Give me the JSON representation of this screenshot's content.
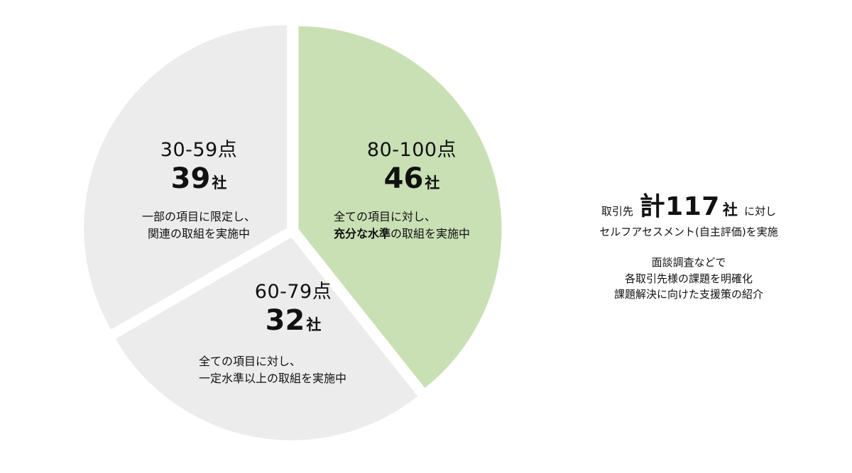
{
  "chart_data": {
    "type": "pie",
    "unit": "社",
    "slices": [
      {
        "range": "80-100点",
        "count": 46,
        "color": "#c8e0b4",
        "desc": [
          "全ての項目に対し、",
          "充分な水準の取組を実施中"
        ],
        "desc_emphasis": "充分な水準"
      },
      {
        "range": "60-79点",
        "count": 32,
        "color": "#ececec",
        "desc": [
          "全ての項目に対し、",
          "一定水準以上の取組を実施中"
        ],
        "desc_emphasis": ""
      },
      {
        "range": "30-59点",
        "count": 39,
        "color": "#ececec",
        "desc": [
          "一部の項目に限定し、",
          "関連の取組を実施中"
        ],
        "desc_emphasis": ""
      }
    ]
  },
  "summary": {
    "prefix": "取引先",
    "total": "計117",
    "unit": "社",
    "suffix": "に対し",
    "line2": "セルフアセスメント(自主評価)を実施",
    "block": [
      "面談調査などで",
      "各取引先様の課題を明確化",
      "課題解決に向けた支援策の紹介"
    ]
  }
}
